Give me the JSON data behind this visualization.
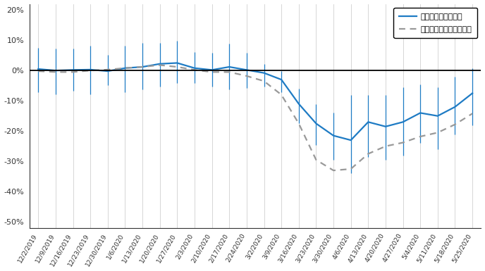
{
  "ylim": [
    -0.52,
    0.22
  ],
  "yticks": [
    -0.5,
    -0.4,
    -0.3,
    -0.2,
    -0.1,
    0.0,
    0.1,
    0.2
  ],
  "ytick_labels": [
    "-50%",
    "-40%",
    "-30%",
    "-20%",
    "-10%",
    "0%",
    "10%",
    "20%"
  ],
  "x_labels": [
    "12/2/2019",
    "12/9/2019",
    "12/16/2019",
    "12/23/2019",
    "12/30/2019",
    "1/6/2020",
    "1/13/2020",
    "1/20/2020",
    "1/27/2020",
    "2/3/2020",
    "2/10/2020",
    "2/17/2020",
    "2/24/2020",
    "3/2/2020",
    "3/9/2020",
    "3/16/2020",
    "3/23/2020",
    "3/30/2020",
    "4/6/2020",
    "4/13/2020",
    "4/20/2020",
    "4/27/2020",
    "5/4/2020",
    "5/11/2020",
    "5/18/2020",
    "5/25/2020"
  ],
  "line1_color": "#1e7bc4",
  "line2_color": "#999999",
  "line1_label": "テレワーク導入企業",
  "line2_label": "テレワーク導入企業以外",
  "line1_mean": [
    0.005,
    0.0,
    0.002,
    0.003,
    -0.002,
    0.008,
    0.012,
    0.022,
    0.025,
    0.008,
    0.002,
    0.012,
    0.002,
    -0.008,
    -0.03,
    -0.11,
    -0.175,
    -0.215,
    -0.23,
    -0.17,
    -0.185,
    -0.17,
    -0.14,
    -0.15,
    -0.12,
    -0.075
  ],
  "line1_upper": [
    0.075,
    0.072,
    0.072,
    0.082,
    0.052,
    0.082,
    0.092,
    0.092,
    0.097,
    0.062,
    0.058,
    0.088,
    0.058,
    0.022,
    -0.002,
    -0.06,
    -0.11,
    -0.14,
    -0.08,
    -0.08,
    -0.08,
    -0.055,
    -0.045,
    -0.055,
    -0.02,
    0.008
  ],
  "line1_lower": [
    -0.072,
    -0.078,
    -0.068,
    -0.078,
    -0.048,
    -0.072,
    -0.062,
    -0.052,
    -0.042,
    -0.042,
    -0.052,
    -0.062,
    -0.058,
    -0.052,
    -0.072,
    -0.175,
    -0.245,
    -0.295,
    -0.34,
    -0.285,
    -0.295,
    -0.28,
    -0.24,
    -0.26,
    -0.21,
    -0.18
  ],
  "line2_mean": [
    -0.002,
    -0.005,
    -0.005,
    0.0,
    0.003,
    0.008,
    0.012,
    0.018,
    0.012,
    0.002,
    -0.005,
    -0.005,
    -0.018,
    -0.035,
    -0.08,
    -0.175,
    -0.295,
    -0.33,
    -0.325,
    -0.275,
    -0.25,
    -0.238,
    -0.218,
    -0.205,
    -0.178,
    -0.142
  ],
  "background_color": "#ffffff",
  "grid_color": "#d0d0d0",
  "figsize": [
    6.88,
    3.85
  ],
  "dpi": 100
}
